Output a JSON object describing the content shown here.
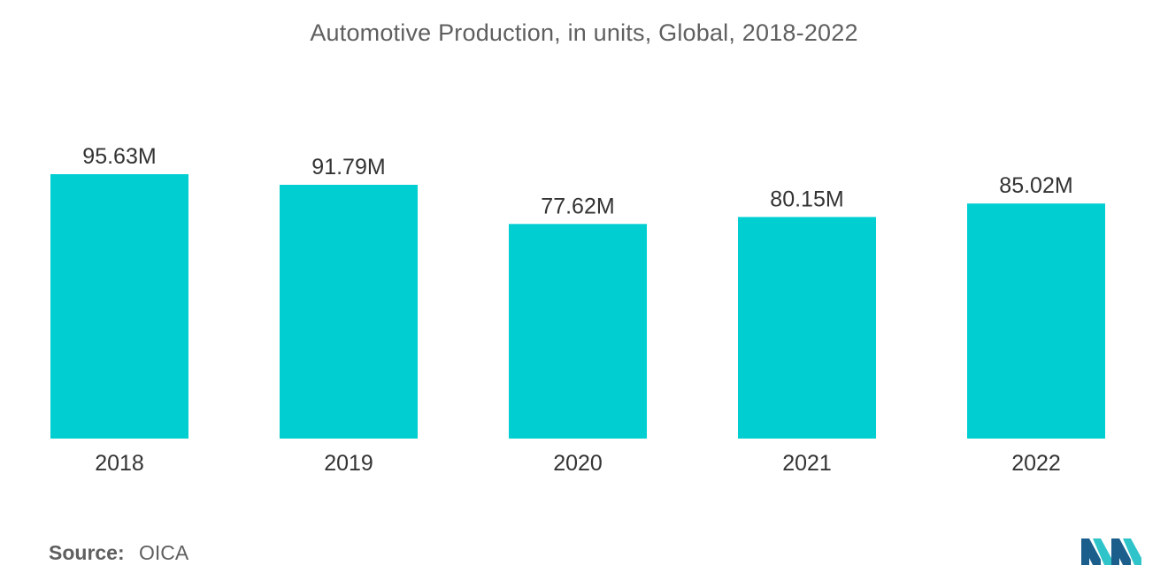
{
  "title": "Automotive Production, in units, Global, 2018-2022",
  "source": {
    "label": "Source:",
    "value": "OICA"
  },
  "colors": {
    "bar": "#00ced1",
    "text": "#333333",
    "muted": "#5f5f5f",
    "logo_dark": "#1b5e8c",
    "logo_light": "#2ec4c9"
  },
  "logo_icon": "mordor-intelligence-logo",
  "chart_data": {
    "type": "bar",
    "title": "Automotive Production, in units, Global, 2018-2022",
    "xlabel": "",
    "ylabel": "",
    "categories": [
      "2018",
      "2019",
      "2020",
      "2021",
      "2022"
    ],
    "values": [
      95.63,
      91.79,
      77.62,
      80.15,
      85.02
    ],
    "data_labels": [
      "95.63M",
      "91.79M",
      "77.62M",
      "80.15M",
      "85.02M"
    ],
    "unit": "M",
    "ylim": [
      0,
      95.63
    ],
    "grid": false,
    "legend": "none"
  }
}
